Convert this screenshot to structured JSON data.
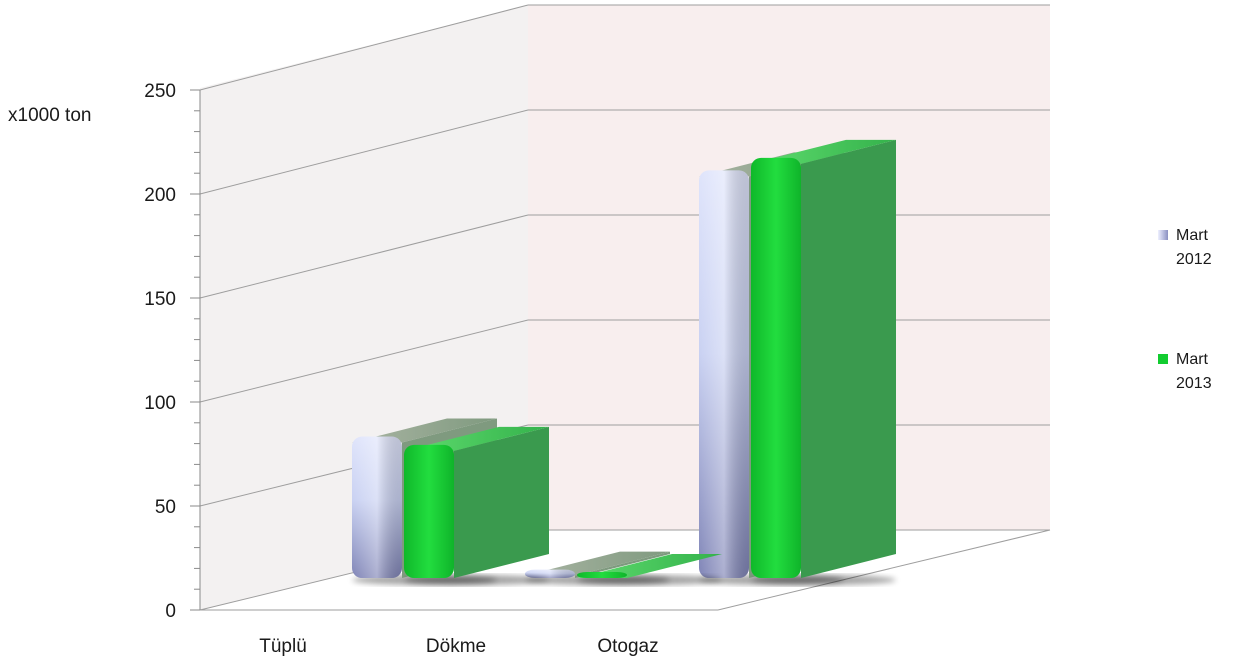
{
  "chart_data": {
    "type": "bar",
    "three_d": true,
    "ylabel": "x1000 ton",
    "ylim": [
      0,
      250
    ],
    "yticks": [
      "0",
      "50",
      "100",
      "150",
      "200",
      "250"
    ],
    "categories": [
      "Tüplü",
      "Dökme",
      "Otogaz"
    ],
    "series": [
      {
        "name_line1": "Mart",
        "name_line2": "2012",
        "values": [
          68,
          4,
          196
        ],
        "color": "#c6cdf0"
      },
      {
        "name_line1": "Mart",
        "name_line2": "2013",
        "values": [
          64,
          1,
          202
        ],
        "color": "#1fd63a"
      }
    ],
    "grid": true,
    "legend_position": "right"
  }
}
